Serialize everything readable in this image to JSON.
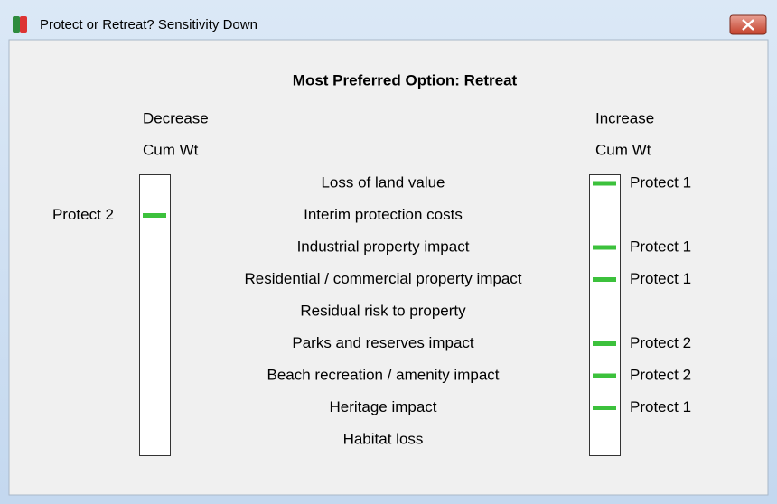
{
  "window": {
    "title": "Protect or Retreat? Sensitivity Down"
  },
  "heading": "Most Preferred Option: Retreat",
  "left_header": [
    "Decrease",
    "Cum Wt"
  ],
  "right_header": [
    "Increase",
    "Cum Wt"
  ],
  "rows": [
    {
      "criterion": "Loss of land value",
      "decrease": null,
      "increase": "Protect 1"
    },
    {
      "criterion": "Interim protection costs",
      "decrease": "Protect 2",
      "increase": null
    },
    {
      "criterion": "Industrial property impact",
      "decrease": null,
      "increase": "Protect 1"
    },
    {
      "criterion": "Residential / commercial property impact",
      "decrease": null,
      "increase": "Protect 1"
    },
    {
      "criterion": "Residual risk to property",
      "decrease": null,
      "increase": null
    },
    {
      "criterion": "Parks and reserves impact",
      "decrease": null,
      "increase": "Protect 2"
    },
    {
      "criterion": "Beach recreation / amenity impact",
      "decrease": null,
      "increase": "Protect 2"
    },
    {
      "criterion": "Heritage impact",
      "decrease": null,
      "increase": "Protect 1"
    },
    {
      "criterion": "Habitat loss",
      "decrease": null,
      "increase": null
    }
  ]
}
